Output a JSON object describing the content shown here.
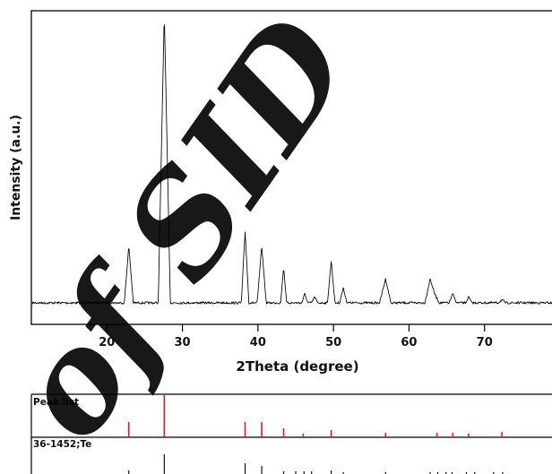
{
  "chart_data": {
    "type": "line",
    "ylabel": "Intensity (a.u.)",
    "xlabel": "2Theta (degree)",
    "xlim": [
      10,
      80
    ],
    "xticks": [
      20,
      30,
      40,
      50,
      60,
      70
    ],
    "ylim": [
      0,
      100
    ],
    "grid": false,
    "series": [
      {
        "x": [
          10,
          22.3,
          22.9,
          23.5,
          26.8,
          27.6,
          28.4,
          37.8,
          38.3,
          38.8,
          39.9,
          40.5,
          41.1,
          43.0,
          43.4,
          43.8,
          45.8,
          46.2,
          46.6,
          47.1,
          47.5,
          47.9,
          49.2,
          49.7,
          50.2,
          50.8,
          51.3,
          51.8,
          56.1,
          56.9,
          57.6,
          62.1,
          62.8,
          63.4,
          64.0,
          65.3,
          65.8,
          66.3,
          67.5,
          67.9,
          68.3,
          71.8,
          72.3,
          72.8,
          80
        ],
        "y": [
          3,
          3,
          22,
          3,
          3,
          100,
          3,
          3,
          27,
          3,
          3,
          22,
          3,
          3,
          15,
          3,
          3,
          6,
          3,
          3,
          5,
          3,
          3,
          17,
          3,
          3,
          8,
          3,
          3,
          11,
          3,
          3,
          11,
          6,
          3,
          3,
          6,
          3,
          3,
          5,
          3,
          3,
          4,
          3,
          3
        ]
      }
    ],
    "panels": [
      {
        "label": "Peak list",
        "color": "#d42020",
        "x": [
          22.9,
          27.6,
          38.3,
          40.5,
          43.4,
          46.0,
          49.7,
          56.9,
          63.7,
          65.8,
          67.9,
          72.3
        ],
        "values": [
          17,
          48,
          17,
          17,
          10,
          4,
          8,
          5,
          5,
          5,
          4,
          6
        ]
      },
      {
        "label": "36-1452;Te",
        "color": "#111111",
        "x": [
          22.9,
          27.6,
          38.3,
          40.5,
          43.4,
          45.0,
          46.1,
          47.1,
          49.7,
          51.3,
          56.9,
          62.8,
          63.8,
          64.9,
          65.7,
          67.6,
          68.7,
          71.2,
          72.4
        ],
        "values": [
          4,
          22,
          12,
          9,
          3,
          3,
          3,
          3,
          4,
          2,
          2,
          2,
          2,
          2,
          2,
          2,
          2,
          2,
          2
        ]
      }
    ],
    "watermark": "of SID"
  }
}
